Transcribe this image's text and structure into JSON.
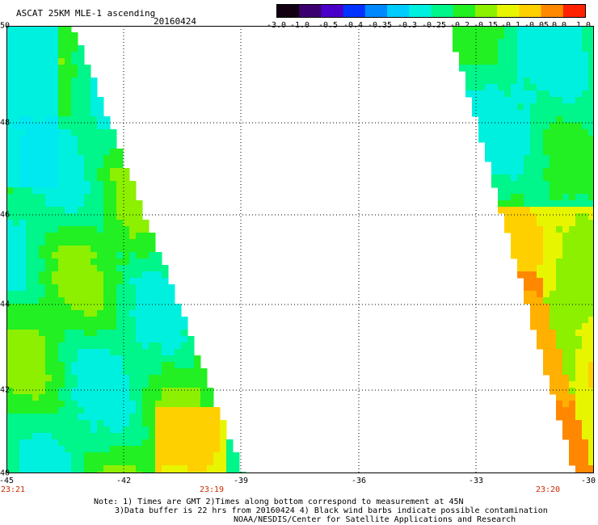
{
  "header": {
    "title": "ASCAT 25KM MLE-1 ascending",
    "date": "20160424"
  },
  "colorbar": {
    "colors": [
      "#120012",
      "#3a0070",
      "#4a00c8",
      "#0033ff",
      "#0088ff",
      "#00ccff",
      "#00f0e0",
      "#00f58a",
      "#22f022",
      "#8cf000",
      "#e8f500",
      "#ffd000",
      "#ff8800",
      "#ff2200"
    ],
    "labels": [
      "-3.0",
      "-1.0",
      "-0.5",
      "-0.4",
      "-0.35",
      "-0.3",
      "-0.25",
      "-0.2",
      "-0.15",
      "-0.1",
      "-0.05",
      "0.0",
      "1.0"
    ]
  },
  "map": {
    "lat_labels": [
      "50",
      "48",
      "46",
      "44",
      "42",
      "40"
    ],
    "lon_labels": [
      "-45",
      "-42",
      "-39",
      "-36",
      "-33",
      "-30"
    ],
    "times": [
      "23:21",
      "23:19",
      "23:20"
    ],
    "lon_range": [
      -45,
      -30
    ],
    "lat_range": [
      40,
      50
    ]
  },
  "notes": {
    "line1": "Note: 1) Times are GMT 2)Times along bottom correspond to measurement at 45N",
    "line2": "3)Data buffer is 22 hrs from 20160424 4) Black wind barbs indicate possible contamination",
    "line3": "NOAA/NESDIS/Center for Satellite Applications and Research"
  }
}
